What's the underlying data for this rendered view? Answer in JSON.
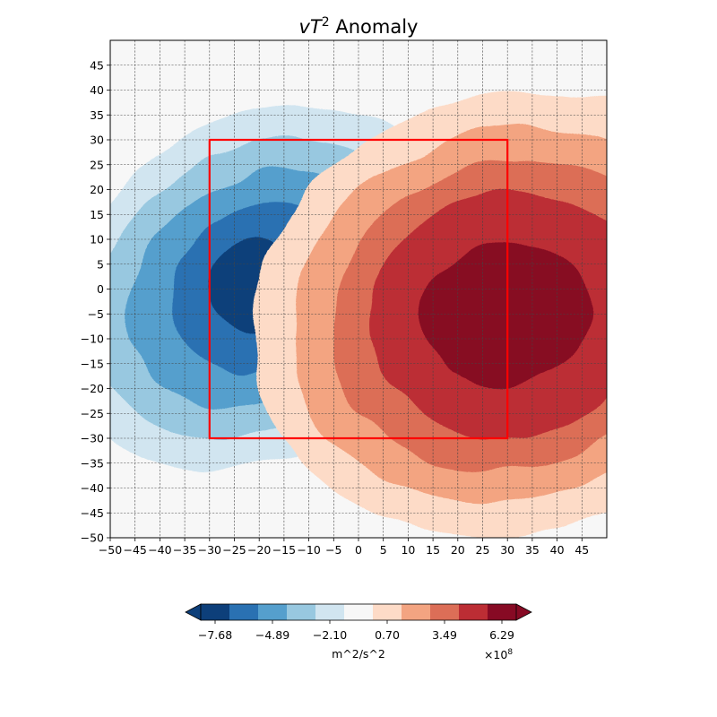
{
  "chart_data": {
    "type": "heatmap",
    "subtype": "filled-contour",
    "title": {
      "prefix": "vT",
      "superscript": "2",
      "suffix": " Anomaly"
    },
    "xlim": [
      -50,
      50
    ],
    "ylim": [
      -50,
      50
    ],
    "x_ticks": [
      -50,
      -45,
      -40,
      -35,
      -30,
      -25,
      -20,
      -15,
      -10,
      -5,
      0,
      5,
      10,
      15,
      20,
      25,
      30,
      35,
      40,
      45
    ],
    "y_ticks": [
      -50,
      -45,
      -40,
      -35,
      -30,
      -25,
      -20,
      -15,
      -10,
      -5,
      0,
      5,
      10,
      15,
      20,
      25,
      30,
      35,
      40,
      45
    ],
    "x_tick_labels": [
      "−50",
      "−45",
      "−40",
      "−35",
      "−30",
      "−25",
      "−20",
      "−15",
      "−10",
      "−5",
      "0",
      "5",
      "10",
      "15",
      "20",
      "25",
      "30",
      "35",
      "40",
      "45"
    ],
    "y_tick_labels": [
      "−50",
      "−45",
      "−40",
      "−35",
      "−30",
      "−25",
      "−20",
      "−15",
      "−10",
      "−5",
      "0",
      "5",
      "10",
      "15",
      "20",
      "25",
      "30",
      "35",
      "40",
      "45"
    ],
    "grid": true,
    "grid_style": "dashed",
    "colormap": "RdBu_r",
    "level_colors": [
      "#0d3f7a",
      "#2a71b2",
      "#559fcd",
      "#98c8e0",
      "#d1e5f0",
      "#f7f7f7",
      "#fddbc7",
      "#f3a481",
      "#dc6e57",
      "#bc2d34",
      "#870a24"
    ],
    "colorbar": {
      "orientation": "horizontal",
      "extend": "both",
      "ticks": [
        -7.68,
        -4.89,
        -2.1,
        0.7,
        3.49,
        6.29
      ],
      "tick_labels": [
        "−7.68",
        "−4.89",
        "−2.10",
        "0.70",
        "3.49",
        "6.29"
      ],
      "label": "m^2/s^2",
      "multiplier_base": "×10",
      "multiplier_exp": "8"
    },
    "box": {
      "color": "#ff0000",
      "x": [
        -30,
        30
      ],
      "y": [
        -30,
        30
      ]
    },
    "negative_center": [
      -20,
      0
    ],
    "positive_center": [
      30,
      -5
    ]
  }
}
